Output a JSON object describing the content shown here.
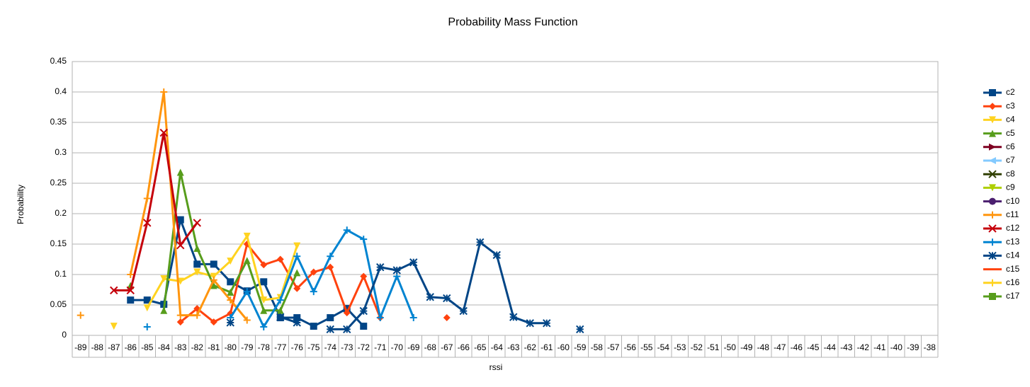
{
  "chart_data": {
    "type": "line",
    "title": "Probability Mass Function",
    "x_label": "rssi",
    "y_label": "Probability",
    "categories": [
      "-89",
      "-88",
      "-87",
      "-86",
      "-85",
      "-84",
      "-83",
      "-82",
      "-81",
      "-80",
      "-79",
      "-78",
      "-77",
      "-76",
      "-75",
      "-74",
      "-73",
      "-72",
      "-71",
      "-70",
      "-69",
      "-68",
      "-67",
      "-66",
      "-65",
      "-64",
      "-63",
      "-62",
      "-61",
      "-60",
      "-59",
      "-58",
      "-57",
      "-56",
      "-55",
      "-54",
      "-53",
      "-52",
      "-51",
      "-50",
      "-49",
      "-48",
      "-47",
      "-46",
      "-45",
      "-44",
      "-43",
      "-42",
      "-41",
      "-40",
      "-39",
      "-38"
    ],
    "ylim": [
      0,
      0.45
    ],
    "yticks": [
      0,
      0.05,
      0.1,
      0.15,
      0.2,
      0.25,
      0.3,
      0.35,
      0.4,
      0.45
    ],
    "grid": true,
    "legend": "right",
    "series": [
      {
        "name": "c2",
        "color": "#004586",
        "marker": "square",
        "values": [
          null,
          null,
          null,
          0.058,
          0.058,
          0.051,
          0.19,
          0.117,
          0.117,
          0.088,
          0.073,
          0.088,
          0.029,
          0.029,
          0.015,
          0.029,
          0.044,
          0.015,
          null,
          null,
          null,
          null,
          null,
          null,
          null,
          null,
          null,
          null,
          null,
          null,
          null,
          null,
          null,
          null,
          null,
          null,
          null,
          null,
          null,
          null,
          null,
          null,
          null,
          null,
          null,
          null,
          null,
          null,
          null,
          null,
          null,
          null
        ]
      },
      {
        "name": "c3",
        "color": "#ff420e",
        "marker": "diamond",
        "values": [
          null,
          null,
          null,
          null,
          null,
          null,
          0.022,
          0.044,
          0.022,
          0.036,
          0.15,
          0.116,
          0.125,
          0.077,
          0.104,
          0.112,
          0.037,
          0.097,
          0.029,
          null,
          null,
          null,
          0.029,
          null,
          null,
          null,
          null,
          null,
          null,
          null,
          null,
          null,
          null,
          null,
          null,
          null,
          null,
          null,
          null,
          null,
          null,
          null,
          null,
          null,
          null,
          null,
          null,
          null,
          null,
          null,
          null,
          null
        ]
      },
      {
        "name": "c4",
        "color": "#ffd320",
        "marker": "triangle-down",
        "values": [
          null,
          null,
          0.015,
          null,
          0.045,
          0.093,
          0.089,
          0.104,
          0.097,
          0.122,
          0.163,
          0.058,
          0.062,
          0.147,
          null,
          null,
          null,
          null,
          null,
          null,
          null,
          null,
          null,
          null,
          null,
          null,
          null,
          null,
          null,
          null,
          null,
          null,
          null,
          null,
          null,
          null,
          null,
          null,
          null,
          null,
          null,
          null,
          null,
          null,
          null,
          null,
          null,
          null,
          null,
          null,
          null,
          null
        ]
      },
      {
        "name": "c5",
        "color": "#579d1c",
        "marker": "triangle",
        "values": [
          null,
          null,
          null,
          0.082,
          null,
          0.041,
          0.268,
          0.143,
          0.082,
          0.071,
          0.123,
          0.041,
          0.041,
          0.103,
          null,
          null,
          null,
          null,
          null,
          null,
          null,
          null,
          null,
          null,
          null,
          null,
          null,
          null,
          null,
          null,
          null,
          null,
          null,
          null,
          null,
          null,
          null,
          null,
          null,
          null,
          null,
          null,
          null,
          null,
          null,
          null,
          null,
          null,
          null,
          null,
          null,
          null
        ]
      },
      {
        "name": "c6",
        "color": "#7e0021",
        "marker": "triangle-right",
        "values": [
          null,
          null,
          null,
          null,
          null,
          null,
          null,
          null,
          null,
          null,
          null,
          null,
          null,
          null,
          null,
          null,
          null,
          null,
          null,
          null,
          null,
          null,
          null,
          null,
          null,
          null,
          null,
          null,
          null,
          null,
          null,
          null,
          null,
          null,
          null,
          null,
          null,
          null,
          null,
          null,
          null,
          null,
          null,
          null,
          null,
          null,
          null,
          null,
          null,
          null,
          null,
          null
        ]
      },
      {
        "name": "c7",
        "color": "#83caff",
        "marker": "triangle-left",
        "values": [
          null,
          null,
          null,
          null,
          null,
          null,
          null,
          null,
          null,
          null,
          null,
          null,
          null,
          null,
          null,
          null,
          null,
          null,
          null,
          null,
          null,
          null,
          null,
          null,
          null,
          null,
          null,
          null,
          null,
          null,
          null,
          null,
          null,
          null,
          null,
          null,
          null,
          null,
          null,
          null,
          null,
          null,
          null,
          null,
          null,
          null,
          null,
          null,
          null,
          null,
          null,
          null
        ]
      },
      {
        "name": "c8",
        "color": "#314004",
        "marker": "x",
        "values": [
          null,
          null,
          null,
          null,
          null,
          null,
          null,
          null,
          null,
          null,
          null,
          null,
          null,
          null,
          null,
          null,
          null,
          null,
          null,
          null,
          null,
          null,
          null,
          null,
          null,
          null,
          null,
          null,
          null,
          null,
          null,
          null,
          null,
          null,
          null,
          null,
          null,
          null,
          null,
          null,
          null,
          null,
          null,
          null,
          null,
          null,
          null,
          null,
          null,
          null,
          null,
          null
        ]
      },
      {
        "name": "c9",
        "color": "#aecf00",
        "marker": "triangle-down",
        "values": [
          null,
          null,
          null,
          null,
          null,
          null,
          null,
          null,
          null,
          null,
          null,
          null,
          null,
          null,
          null,
          null,
          null,
          null,
          null,
          null,
          null,
          null,
          null,
          null,
          null,
          null,
          null,
          null,
          null,
          null,
          null,
          null,
          null,
          null,
          null,
          null,
          null,
          null,
          null,
          null,
          null,
          null,
          null,
          null,
          null,
          null,
          null,
          null,
          null,
          null,
          null,
          null
        ]
      },
      {
        "name": "c10",
        "color": "#4b1f6f",
        "marker": "circle",
        "values": [
          null,
          null,
          null,
          null,
          null,
          null,
          null,
          null,
          null,
          null,
          null,
          null,
          null,
          null,
          null,
          null,
          null,
          null,
          null,
          null,
          null,
          null,
          null,
          null,
          null,
          null,
          null,
          null,
          null,
          null,
          null,
          null,
          null,
          null,
          null,
          null,
          null,
          null,
          null,
          null,
          null,
          null,
          null,
          null,
          null,
          null,
          null,
          null,
          null,
          null,
          null,
          null
        ]
      },
      {
        "name": "c11",
        "color": "#ff950e",
        "marker": "plus",
        "values": [
          0.033,
          null,
          null,
          0.1,
          0.225,
          0.4,
          0.033,
          0.033,
          0.091,
          0.058,
          0.025,
          null,
          null,
          null,
          null,
          null,
          null,
          null,
          null,
          null,
          null,
          null,
          null,
          null,
          null,
          null,
          null,
          null,
          null,
          null,
          null,
          null,
          null,
          null,
          null,
          null,
          null,
          null,
          null,
          null,
          null,
          null,
          null,
          null,
          null,
          null,
          null,
          null,
          null,
          null,
          null,
          null
        ]
      },
      {
        "name": "c12",
        "color": "#c5000b",
        "marker": "x",
        "values": [
          null,
          null,
          0.074,
          0.074,
          0.185,
          0.333,
          0.148,
          0.185,
          null,
          null,
          null,
          null,
          null,
          null,
          null,
          null,
          null,
          null,
          null,
          null,
          null,
          null,
          null,
          null,
          null,
          null,
          null,
          null,
          null,
          null,
          null,
          null,
          null,
          null,
          null,
          null,
          null,
          null,
          null,
          null,
          null,
          null,
          null,
          null,
          null,
          null,
          null,
          null,
          null,
          null,
          null,
          null
        ]
      },
      {
        "name": "c13",
        "color": "#0084d1",
        "marker": "plus",
        "values": [
          null,
          null,
          null,
          null,
          0.014,
          null,
          null,
          null,
          null,
          0.029,
          0.072,
          0.014,
          0.058,
          0.13,
          0.072,
          0.13,
          0.173,
          0.158,
          0.029,
          0.097,
          0.029,
          null,
          null,
          null,
          null,
          null,
          null,
          null,
          null,
          null,
          null,
          null,
          null,
          null,
          null,
          null,
          null,
          null,
          null,
          null,
          null,
          null,
          null,
          null,
          null,
          null,
          null,
          null,
          null,
          null,
          null,
          null
        ]
      },
      {
        "name": "c14",
        "color": "#004586",
        "marker": "star",
        "values": [
          null,
          null,
          null,
          null,
          null,
          null,
          null,
          null,
          null,
          0.021,
          null,
          null,
          0.03,
          0.021,
          null,
          0.01,
          0.01,
          0.04,
          0.112,
          0.107,
          0.12,
          0.063,
          0.061,
          0.04,
          0.153,
          0.132,
          0.03,
          0.02,
          0.02,
          null,
          0.01,
          null,
          null,
          null,
          null,
          null,
          null,
          null,
          null,
          null,
          null,
          null,
          null,
          null,
          null,
          null,
          null,
          null,
          null,
          null,
          null,
          null
        ]
      },
      {
        "name": "c15",
        "color": "#ff420e",
        "marker": "none",
        "values": [
          null,
          null,
          null,
          null,
          null,
          null,
          null,
          null,
          null,
          null,
          null,
          null,
          null,
          null,
          null,
          null,
          null,
          null,
          null,
          null,
          null,
          null,
          null,
          null,
          null,
          null,
          null,
          null,
          null,
          null,
          null,
          null,
          null,
          null,
          null,
          null,
          null,
          null,
          null,
          null,
          null,
          null,
          null,
          null,
          null,
          null,
          null,
          null,
          null,
          null,
          null,
          null
        ]
      },
      {
        "name": "c16",
        "color": "#ffd320",
        "marker": "plus",
        "values": [
          null,
          null,
          null,
          null,
          null,
          null,
          null,
          null,
          null,
          null,
          null,
          null,
          null,
          null,
          null,
          null,
          null,
          null,
          null,
          null,
          null,
          null,
          null,
          null,
          null,
          null,
          null,
          null,
          null,
          null,
          null,
          null,
          null,
          null,
          null,
          null,
          null,
          null,
          null,
          null,
          null,
          null,
          null,
          null,
          null,
          null,
          null,
          null,
          null,
          null,
          null,
          null
        ]
      },
      {
        "name": "c17",
        "color": "#579d1c",
        "marker": "square",
        "values": [
          null,
          null,
          null,
          null,
          null,
          null,
          null,
          null,
          null,
          null,
          null,
          null,
          null,
          null,
          null,
          null,
          null,
          null,
          null,
          null,
          null,
          null,
          null,
          null,
          null,
          null,
          null,
          null,
          null,
          null,
          null,
          null,
          null,
          null,
          null,
          null,
          null,
          null,
          null,
          null,
          null,
          null,
          null,
          null,
          null,
          null,
          null,
          null,
          null,
          null,
          null,
          null
        ]
      }
    ]
  }
}
